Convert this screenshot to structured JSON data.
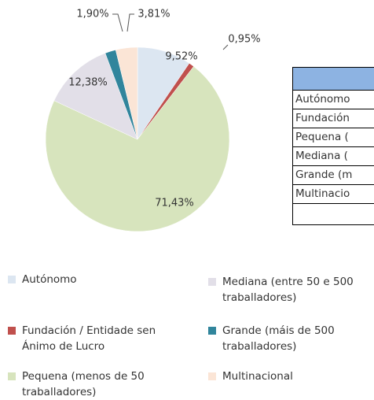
{
  "chart_data": {
    "type": "pie",
    "categories": [
      "Autónomo",
      "Fundación / Entidade sen Ánimo de Lucro",
      "Pequena (menos de 50 traballadores)",
      "Mediana (entre 50 e 500 traballadores)",
      "Grande (máis de 500 traballadores)",
      "Multinacional"
    ],
    "values": [
      9.52,
      0.95,
      71.43,
      12.38,
      1.9,
      3.81
    ],
    "value_labels": [
      "9,52%",
      "0,95%",
      "71,43%",
      "12,38%",
      "1,90%",
      "3,81%"
    ],
    "colors": [
      "#dce6f1",
      "#c0504d",
      "#d7e4bd",
      "#e2dfe8",
      "#31859c",
      "#fbe5d6"
    ],
    "legend": "bottom"
  },
  "table": {
    "rows": [
      "Autónomo",
      "Fundación",
      "Pequena (",
      "Mediana (",
      "Grande (m",
      "Multinacio"
    ]
  }
}
